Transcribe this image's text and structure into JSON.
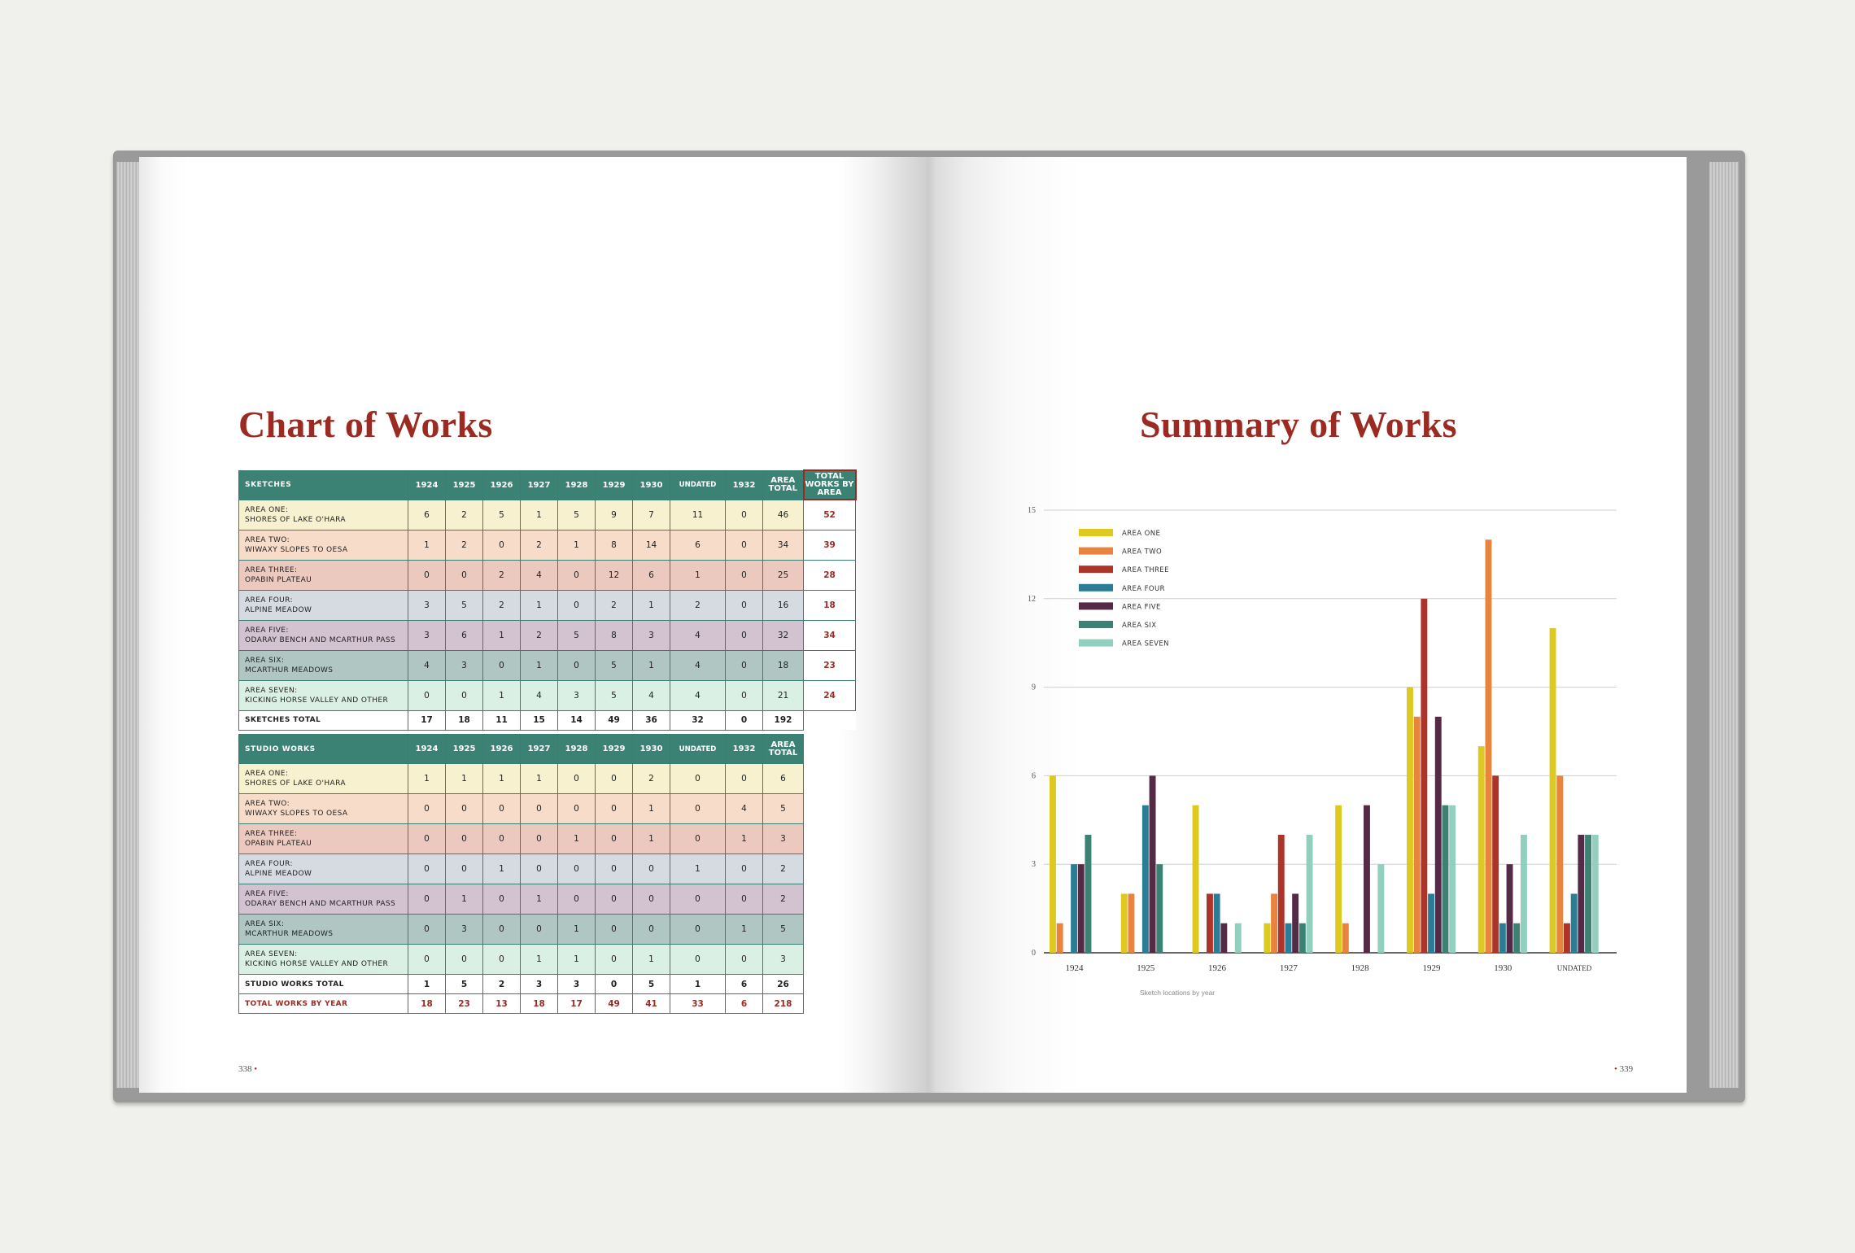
{
  "left_page": {
    "title": "Chart of Works",
    "folio": "338",
    "sketches_table": {
      "header_label": "SKETCHES",
      "columns": [
        "1924",
        "1925",
        "1926",
        "1927",
        "1928",
        "1929",
        "1930",
        "UNDATED",
        "1932",
        "AREA TOTAL"
      ],
      "total_header": "TOTAL WORKS BY AREA",
      "rows": [
        {
          "line1": "AREA ONE:",
          "line2": "SHORES OF LAKE O'HARA",
          "values": [
            "6",
            "2",
            "5",
            "1",
            "5",
            "9",
            "7",
            "11",
            "0",
            "46"
          ],
          "total": "52"
        },
        {
          "line1": "AREA TWO:",
          "line2": "WIWAXY SLOPES TO OESA",
          "values": [
            "1",
            "2",
            "0",
            "2",
            "1",
            "8",
            "14",
            "6",
            "0",
            "34"
          ],
          "total": "39"
        },
        {
          "line1": "AREA THREE:",
          "line2": "OPABIN PLATEAU",
          "values": [
            "0",
            "0",
            "2",
            "4",
            "0",
            "12",
            "6",
            "1",
            "0",
            "25"
          ],
          "total": "28"
        },
        {
          "line1": "AREA FOUR:",
          "line2": "ALPINE MEADOW",
          "values": [
            "3",
            "5",
            "2",
            "1",
            "0",
            "2",
            "1",
            "2",
            "0",
            "16"
          ],
          "total": "18"
        },
        {
          "line1": "AREA FIVE:",
          "line2": "ODARAY BENCH AND MCARTHUR PASS",
          "values": [
            "3",
            "6",
            "1",
            "2",
            "5",
            "8",
            "3",
            "4",
            "0",
            "32"
          ],
          "total": "34"
        },
        {
          "line1": "AREA SIX:",
          "line2": "MCARTHUR MEADOWS",
          "values": [
            "4",
            "3",
            "0",
            "1",
            "0",
            "5",
            "1",
            "4",
            "0",
            "18"
          ],
          "total": "23"
        },
        {
          "line1": "AREA SEVEN:",
          "line2": "KICKING HORSE VALLEY AND OTHER",
          "values": [
            "0",
            "0",
            "1",
            "4",
            "3",
            "5",
            "4",
            "4",
            "0",
            "21"
          ],
          "total": "24"
        }
      ],
      "total_row": {
        "label": "SKETCHES TOTAL",
        "values": [
          "17",
          "18",
          "11",
          "15",
          "14",
          "49",
          "36",
          "32",
          "0",
          "192"
        ]
      }
    },
    "studio_table": {
      "header_label": "STUDIO WORKS",
      "columns": [
        "1924",
        "1925",
        "1926",
        "1927",
        "1928",
        "1929",
        "1930",
        "UNDATED",
        "1932",
        "AREA TOTAL"
      ],
      "rows": [
        {
          "line1": "AREA ONE:",
          "line2": "SHORES OF LAKE O'HARA",
          "values": [
            "1",
            "1",
            "1",
            "1",
            "0",
            "0",
            "2",
            "0",
            "0",
            "6"
          ]
        },
        {
          "line1": "AREA TWO:",
          "line2": "WIWAXY SLOPES TO OESA",
          "values": [
            "0",
            "0",
            "0",
            "0",
            "0",
            "0",
            "1",
            "0",
            "4",
            "5"
          ]
        },
        {
          "line1": "AREA THREE:",
          "line2": "OPABIN PLATEAU",
          "values": [
            "0",
            "0",
            "0",
            "0",
            "1",
            "0",
            "1",
            "0",
            "1",
            "3"
          ]
        },
        {
          "line1": "AREA FOUR:",
          "line2": "ALPINE MEADOW",
          "values": [
            "0",
            "0",
            "1",
            "0",
            "0",
            "0",
            "0",
            "1",
            "0",
            "2"
          ]
        },
        {
          "line1": "AREA FIVE:",
          "line2": "ODARAY BENCH AND MCARTHUR PASS",
          "values": [
            "0",
            "1",
            "0",
            "1",
            "0",
            "0",
            "0",
            "0",
            "0",
            "2"
          ]
        },
        {
          "line1": "AREA SIX:",
          "line2": "MCARTHUR MEADOWS",
          "values": [
            "0",
            "3",
            "0",
            "0",
            "1",
            "0",
            "0",
            "0",
            "1",
            "5"
          ]
        },
        {
          "line1": "AREA SEVEN:",
          "line2": "KICKING HORSE VALLEY AND OTHER",
          "values": [
            "0",
            "0",
            "0",
            "1",
            "1",
            "0",
            "1",
            "0",
            "0",
            "3"
          ]
        }
      ],
      "total_row": {
        "label": "STUDIO WORKS TOTAL",
        "values": [
          "1",
          "5",
          "2",
          "3",
          "3",
          "0",
          "5",
          "1",
          "6",
          "26"
        ]
      },
      "grand_row": {
        "label": "TOTAL WORKS BY YEAR",
        "values": [
          "18",
          "23",
          "13",
          "18",
          "17",
          "49",
          "41",
          "33",
          "6",
          "218"
        ]
      }
    },
    "row_colors": [
      "#f7f1cf",
      "#f7dcca",
      "#ecc9bf",
      "#d5dbe1",
      "#d3c2cf",
      "#b0c6c2",
      "#dbf0e4"
    ]
  },
  "right_page": {
    "title": "Summary of Works",
    "folio": "339",
    "caption": "Sketch locations by year"
  },
  "chart_data": {
    "type": "bar",
    "categories": [
      "1924",
      "1925",
      "1926",
      "1927",
      "1928",
      "1929",
      "1930",
      "UNDATED"
    ],
    "series": [
      {
        "name": "AREA ONE",
        "color": "#ddc91f",
        "values": [
          6,
          2,
          5,
          1,
          5,
          9,
          7,
          11
        ]
      },
      {
        "name": "AREA TWO",
        "color": "#e8843e",
        "values": [
          1,
          2,
          0,
          2,
          1,
          8,
          14,
          6
        ]
      },
      {
        "name": "AREA THREE",
        "color": "#ae3329",
        "values": [
          0,
          0,
          2,
          4,
          0,
          12,
          6,
          1
        ]
      },
      {
        "name": "AREA FOUR",
        "color": "#2b7d96",
        "values": [
          3,
          5,
          2,
          1,
          0,
          2,
          1,
          2
        ]
      },
      {
        "name": "AREA FIVE",
        "color": "#552a46",
        "values": [
          3,
          6,
          1,
          2,
          5,
          8,
          3,
          4
        ]
      },
      {
        "name": "AREA SIX",
        "color": "#3b8275",
        "values": [
          4,
          3,
          0,
          1,
          0,
          5,
          1,
          4
        ]
      },
      {
        "name": "AREA SEVEN",
        "color": "#92cfbe",
        "values": [
          0,
          0,
          1,
          4,
          3,
          5,
          4,
          4
        ]
      }
    ],
    "yticks": [
      0,
      3,
      6,
      9,
      12,
      15
    ],
    "ylim": [
      0,
      15
    ],
    "grid": true,
    "legend": "top-left"
  }
}
